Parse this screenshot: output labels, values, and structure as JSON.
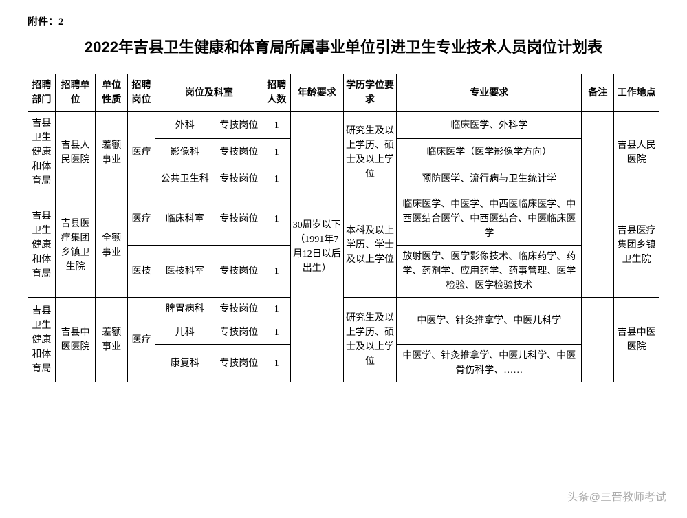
{
  "attachment_label": "附件：2",
  "title": "2022年吉县卫生健康和体育局所属事业单位引进卫生专业技术人员岗位计划表",
  "headers": {
    "dept": "招聘部门",
    "unit": "招聘单位",
    "nature": "单位性质",
    "post": "招聘岗位",
    "position_section": "岗位及科室",
    "count": "招聘人数",
    "age": "年龄要求",
    "edu": "学历学位要求",
    "major": "专业要求",
    "remark": "备注",
    "location": "工作地点"
  },
  "shared": {
    "age_req": "30周岁以下（1991年7月12日以后出生）"
  },
  "groups": [
    {
      "dept": "吉县卫生健康和体育局",
      "unit": "吉县人民医院",
      "nature": "差额事业",
      "post": "医疗",
      "edu": "研究生及以上学历、硕士及以上学位",
      "remark": "",
      "location": "吉县人民医院",
      "rows": [
        {
          "section": "外科",
          "ptype": "专技岗位",
          "count": "1",
          "major": "临床医学、外科学"
        },
        {
          "section": "影像科",
          "ptype": "专技岗位",
          "count": "1",
          "major": "临床医学（医学影像学方向）"
        },
        {
          "section": "公共卫生科",
          "ptype": "专技岗位",
          "count": "1",
          "major": "预防医学、流行病与卫生统计学"
        }
      ]
    },
    {
      "dept": "吉县卫生健康和体育局",
      "unit": "吉县医疗集团乡镇卫生院",
      "nature": "全额事业",
      "edu": "本科及以上学历、学士及以上学位",
      "remark": "",
      "location": "吉县医疗集团乡镇卫生院",
      "rows": [
        {
          "post": "医疗",
          "section": "临床科室",
          "ptype": "专技岗位",
          "count": "1",
          "major": "临床医学、中医学、中西医临床医学、中西医结合医学、中西医结合、中医临床医学"
        },
        {
          "post": "医技",
          "section": "医技科室",
          "ptype": "专技岗位",
          "count": "1",
          "major": "放射医学、医学影像技术、临床药学、药学、药剂学、应用药学、药事管理、医学检验、医学检验技术"
        }
      ]
    },
    {
      "dept": "吉县卫生健康和体育局",
      "unit": "吉县中医医院",
      "nature": "差额事业",
      "post": "医疗",
      "edu": "研究生及以上学历、硕士及以上学位",
      "remark": "",
      "location": "吉县中医医院",
      "rows": [
        {
          "section": "脾胃病科",
          "ptype": "专技岗位",
          "count": "1",
          "major_span": 2,
          "major": "中医学、针灸推拿学、中医儿科学"
        },
        {
          "section": "儿科",
          "ptype": "专技岗位",
          "count": "1"
        },
        {
          "section": "康复科",
          "ptype": "专技岗位",
          "count": "1",
          "major": "中医学、针灸推拿学、中医儿科学、中医骨伤科学、……"
        }
      ]
    }
  ],
  "watermark": "头条@三晋教师考试",
  "style": {
    "border_color": "#000000",
    "background": "#ffffff",
    "text_color": "#000000",
    "title_fontsize": 22,
    "cell_fontsize": 14
  }
}
